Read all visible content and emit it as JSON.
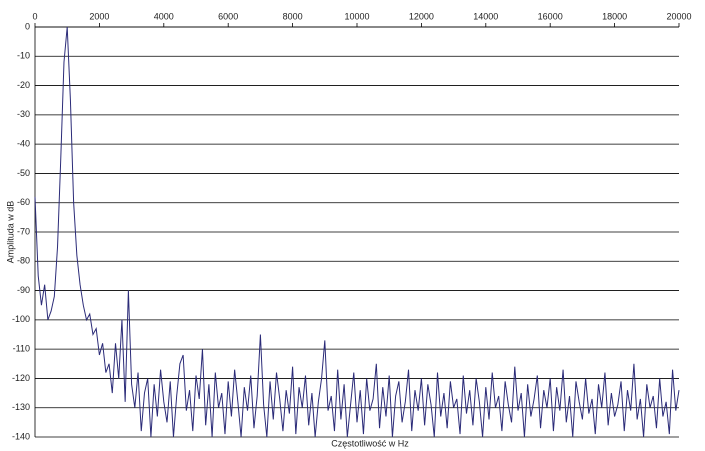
{
  "chart_data": {
    "type": "line",
    "x_label": "Częstotliwość w Hz",
    "y_label": "Amplituda w dB",
    "xlim": [
      0,
      20000
    ],
    "ylim": [
      -140,
      0
    ],
    "xticks": [
      0,
      2000,
      4000,
      6000,
      8000,
      10000,
      12000,
      14000,
      16000,
      18000,
      20000
    ],
    "yticks": [
      0,
      -10,
      -20,
      -30,
      -40,
      -50,
      -60,
      -70,
      -80,
      -90,
      -100,
      -110,
      -120,
      -130,
      -140
    ],
    "grid": true,
    "color": "#2b2b78",
    "x": [
      0,
      100,
      200,
      300,
      400,
      500,
      600,
      700,
      800,
      900,
      1000,
      1100,
      1200,
      1300,
      1400,
      1500,
      1600,
      1700,
      1800,
      1900,
      2000,
      2100,
      2200,
      2300,
      2400,
      2500,
      2600,
      2700,
      2800,
      2900,
      3000,
      3100,
      3200,
      3300,
      3400,
      3500,
      3600,
      3700,
      3800,
      3900,
      4000,
      4100,
      4200,
      4300,
      4400,
      4500,
      4600,
      4700,
      4800,
      4900,
      5000,
      5100,
      5200,
      5300,
      5400,
      5500,
      5600,
      5700,
      5800,
      5900,
      6000,
      6100,
      6200,
      6300,
      6400,
      6500,
      6600,
      6700,
      6800,
      6900,
      7000,
      7100,
      7200,
      7300,
      7400,
      7500,
      7600,
      7700,
      7800,
      7900,
      8000,
      8100,
      8200,
      8300,
      8400,
      8500,
      8600,
      8700,
      8800,
      8900,
      9000,
      9100,
      9200,
      9300,
      9400,
      9500,
      9600,
      9700,
      9800,
      9900,
      10000,
      10100,
      10200,
      10300,
      10400,
      10500,
      10600,
      10700,
      10800,
      10900,
      11000,
      11100,
      11200,
      11300,
      11400,
      11500,
      11600,
      11700,
      11800,
      11900,
      12000,
      12100,
      12200,
      12300,
      12400,
      12500,
      12600,
      12700,
      12800,
      12900,
      13000,
      13100,
      13200,
      13300,
      13400,
      13500,
      13600,
      13700,
      13800,
      13900,
      14000,
      14100,
      14200,
      14300,
      14400,
      14500,
      14600,
      14700,
      14800,
      14900,
      15000,
      15100,
      15200,
      15300,
      15400,
      15500,
      15600,
      15700,
      15800,
      15900,
      16000,
      16100,
      16200,
      16300,
      16400,
      16500,
      16600,
      16700,
      16800,
      16900,
      17000,
      17100,
      17200,
      17300,
      17400,
      17500,
      17600,
      17700,
      17800,
      17900,
      18000,
      18100,
      18200,
      18300,
      18400,
      18500,
      18600,
      18700,
      18800,
      18900,
      19000,
      19100,
      19200,
      19300,
      19400,
      19500,
      19600,
      19700,
      19800,
      19900,
      20000
    ],
    "values": [
      -58,
      -85,
      -95,
      -88,
      -100,
      -97,
      -92,
      -75,
      -45,
      -12,
      0,
      -25,
      -60,
      -78,
      -88,
      -95,
      -100,
      -98,
      -105,
      -103,
      -112,
      -108,
      -118,
      -115,
      -125,
      -108,
      -120,
      -100,
      -128,
      -90,
      -122,
      -130,
      -118,
      -138,
      -125,
      -120,
      -140,
      -122,
      -133,
      -117,
      -128,
      -135,
      -121,
      -140,
      -126,
      -115,
      -112,
      -131,
      -124,
      -138,
      -119,
      -127,
      -110,
      -136,
      -122,
      -140,
      -118,
      -130,
      -125,
      -139,
      -121,
      -133,
      -117,
      -128,
      -140,
      -123,
      -131,
      -119,
      -137,
      -126,
      -105,
      -129,
      -140,
      -121,
      -134,
      -118,
      -127,
      -138,
      -124,
      -132,
      -116,
      -139,
      -123,
      -130,
      -119,
      -136,
      -125,
      -140,
      -128,
      -120,
      -107,
      -131,
      -126,
      -138,
      -117,
      -134,
      -122,
      -140,
      -129,
      -118,
      -135,
      -124,
      -139,
      -120,
      -131,
      -127,
      -115,
      -137,
      -123,
      -133,
      -119,
      -140,
      -126,
      -121,
      -135,
      -128,
      -117,
      -138,
      -124,
      -131,
      -120,
      -136,
      -122,
      -129,
      -140,
      -118,
      -133,
      -125,
      -137,
      -121,
      -130,
      -127,
      -139,
      -119,
      -132,
      -124,
      -136,
      -120,
      -128,
      -140,
      -123,
      -134,
      -118,
      -130,
      -126,
      -138,
      -121,
      -129,
      -135,
      -116,
      -131,
      -125,
      -140,
      -122,
      -133,
      -127,
      -119,
      -137,
      -124,
      -130,
      -120,
      -138,
      -123,
      -131,
      -117,
      -135,
      -126,
      -140,
      -121,
      -128,
      -134,
      -120,
      -132,
      -127,
      -139,
      -122,
      -130,
      -118,
      -136,
      -125,
      -133,
      -129,
      -121,
      -138,
      -124,
      -131,
      -115,
      -134,
      -127,
      -140,
      -122,
      -130,
      -126,
      -137,
      -120,
      -133,
      -128,
      -139,
      -117,
      -131,
      -124
    ]
  }
}
